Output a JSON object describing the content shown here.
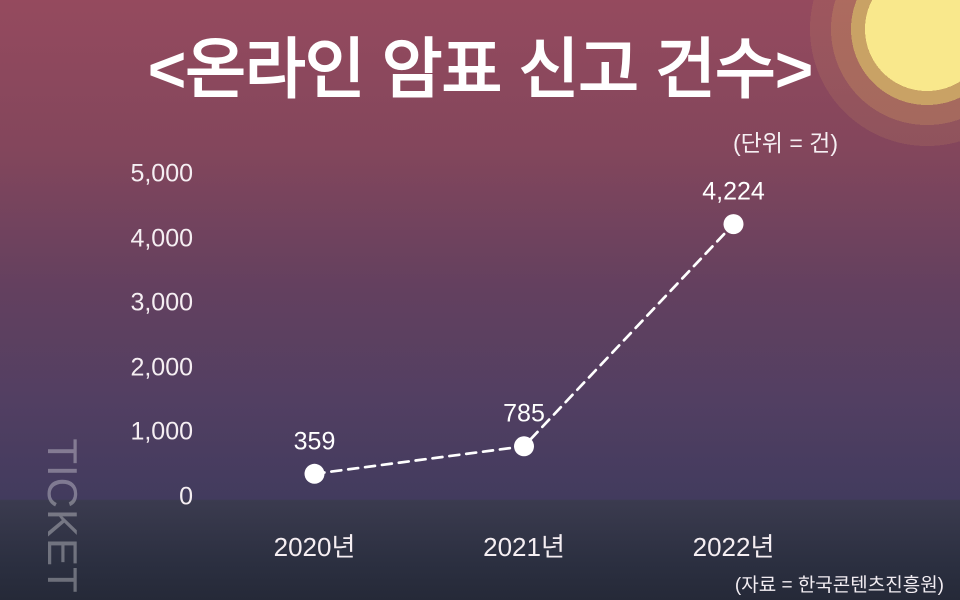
{
  "title": "<온라인 암표 신고 건수>",
  "unit_label": "(단위 = 건)",
  "source_label": "(자료 = 한국콘텐츠진흥원)",
  "watermark": "TICKET",
  "colors": {
    "background_top": "#954a5e",
    "background_middle": "#63405f",
    "background_bottom": "#252938",
    "floor_band": "#3b3b4f",
    "sun_core": "#f9e88c",
    "sun_ring": "#c9a265",
    "line": "#ffffff",
    "marker": "#ffffff",
    "text": "#ffffff",
    "watermark_text": "rgba(255,255,255,0.32)"
  },
  "chart_data": {
    "type": "line",
    "title": "온라인 암표 신고 건수",
    "unit": "건",
    "source": "한국콘텐츠진흥원",
    "categories": [
      "2020년",
      "2021년",
      "2022년"
    ],
    "values": [
      359,
      785,
      4224
    ],
    "value_labels": [
      "359",
      "785",
      "4,224"
    ],
    "y_ticks": [
      {
        "value": 5000,
        "label": "5,000"
      },
      {
        "value": 4000,
        "label": "4,000"
      },
      {
        "value": 3000,
        "label": "3,000"
      },
      {
        "value": 2000,
        "label": "2,000"
      },
      {
        "value": 1000,
        "label": "1,000"
      },
      {
        "value": 0,
        "label": "0"
      }
    ],
    "ylim": [
      0,
      5000
    ],
    "line_style": "dashed",
    "marker": "circle",
    "grid": false,
    "legend": false
  }
}
